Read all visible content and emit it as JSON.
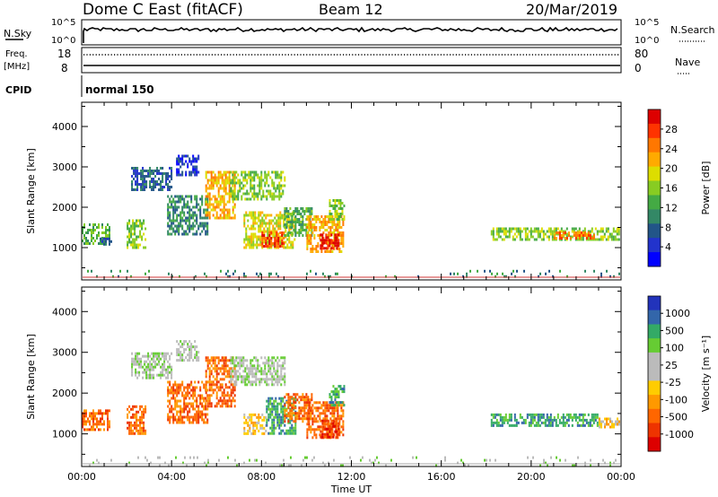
{
  "header": {
    "title": "Dome C East (fitACF)",
    "beam": "Beam 12",
    "date": "20/Mar/2019"
  },
  "summary": {
    "nsky_label": "N.Sky",
    "nsearch_label": "N.Search",
    "nsky_ticks": [
      "10^5",
      "10^0"
    ],
    "nsearch_ticks": [
      "10^5",
      "10^0"
    ],
    "freq_label": "Freq.",
    "freq_unit": "[MHz]",
    "freq_ticks": [
      "18",
      "8"
    ],
    "nave_label": "Nave",
    "nave_ticks": [
      "80",
      "0"
    ],
    "cpid_label": "CPID",
    "cpid_value": "normal 150"
  },
  "chart_data": [
    {
      "type": "heatmap",
      "name": "power",
      "ylabel": "Slant Range [km]",
      "yticks": [
        "4000",
        "3000",
        "2000",
        "1000"
      ],
      "ytick_values": [
        4000,
        3000,
        2000,
        1000
      ],
      "ylim": [
        200,
        4600
      ],
      "xlim": [
        0,
        24
      ],
      "xticks": [
        "00:00",
        "04:00",
        "08:00",
        "12:00",
        "16:00",
        "20:00",
        "00:00"
      ],
      "colorbar": {
        "label": "Power [dB]",
        "ticks": [
          "28",
          "24",
          "20",
          "16",
          "12",
          "8",
          "4"
        ],
        "colors": [
          "#dd0000",
          "#ff3300",
          "#ff7700",
          "#ffaa00",
          "#dddd00",
          "#88cc22",
          "#44aa44",
          "#338866",
          "#225588",
          "#2233cc",
          "#0000ff"
        ]
      },
      "regions": [
        {
          "t0": 0.0,
          "t1": 1.2,
          "r0": 1100,
          "r1": 1600,
          "c": 6
        },
        {
          "t0": 0.8,
          "t1": 1.3,
          "r0": 1050,
          "r1": 1250,
          "c": 8
        },
        {
          "t0": 2.0,
          "t1": 2.8,
          "r0": 1000,
          "r1": 1700,
          "c": 5
        },
        {
          "t0": 2.2,
          "t1": 4.0,
          "r0": 2400,
          "r1": 3000,
          "c": 8
        },
        {
          "t0": 3.8,
          "t1": 5.6,
          "r0": 1300,
          "r1": 2300,
          "c": 7
        },
        {
          "t0": 4.2,
          "t1": 5.2,
          "r0": 2800,
          "r1": 3300,
          "c": 9
        },
        {
          "t0": 5.5,
          "t1": 6.8,
          "r0": 1700,
          "r1": 2900,
          "c": 3
        },
        {
          "t0": 6.6,
          "t1": 9.0,
          "r0": 2200,
          "r1": 2900,
          "c": 5
        },
        {
          "t0": 7.2,
          "t1": 9.5,
          "r0": 1000,
          "r1": 1900,
          "c": 4
        },
        {
          "t0": 8.0,
          "t1": 9.0,
          "r0": 1050,
          "r1": 1400,
          "c": 1
        },
        {
          "t0": 9.0,
          "t1": 10.2,
          "r0": 1300,
          "r1": 2000,
          "c": 6
        },
        {
          "t0": 10.0,
          "t1": 11.6,
          "r0": 900,
          "r1": 1800,
          "c": 3
        },
        {
          "t0": 10.6,
          "t1": 11.4,
          "r0": 950,
          "r1": 1350,
          "c": 0
        },
        {
          "t0": 11.0,
          "t1": 11.7,
          "r0": 1700,
          "r1": 2200,
          "c": 5
        },
        {
          "t0": 18.2,
          "t1": 23.9,
          "r0": 1200,
          "r1": 1500,
          "c": 5
        },
        {
          "t0": 21.0,
          "t1": 22.8,
          "r0": 1250,
          "r1": 1400,
          "c": 2
        },
        {
          "t0": 0.0,
          "t1": 23.9,
          "r0": 250,
          "r1": 450,
          "c": 7
        }
      ]
    },
    {
      "type": "heatmap",
      "name": "velocity",
      "ylabel": "Slant Range [km]",
      "yticks": [
        "4000",
        "3000",
        "2000",
        "1000"
      ],
      "ytick_values": [
        4000,
        3000,
        2000,
        1000
      ],
      "ylim": [
        200,
        4600
      ],
      "xlim": [
        0,
        24
      ],
      "xticks": [
        "00:00",
        "04:00",
        "08:00",
        "12:00",
        "16:00",
        "20:00",
        "00:00"
      ],
      "xlabel": "Time UT",
      "colorbar": {
        "label": "Velocity [m s⁻¹]",
        "ticks": [
          "1000",
          "500",
          "100",
          "25",
          "-25",
          "-100",
          "-500",
          "-1000"
        ],
        "colors": [
          "#2233bb",
          "#3366aa",
          "#33aa66",
          "#66cc33",
          "#bbbbbb",
          "#bbbbbb",
          "#ffcc00",
          "#ff9900",
          "#ff6600",
          "#ee3300",
          "#dd0000"
        ]
      },
      "regions": [
        {
          "t0": 0.0,
          "t1": 1.2,
          "r0": 1100,
          "r1": 1600,
          "c": 8
        },
        {
          "t0": 2.0,
          "t1": 2.8,
          "r0": 1000,
          "r1": 1700,
          "c": 8
        },
        {
          "t0": 2.2,
          "t1": 4.0,
          "r0": 2400,
          "r1": 3000,
          "c": 4
        },
        {
          "t0": 3.8,
          "t1": 5.6,
          "r0": 1300,
          "r1": 2300,
          "c": 8
        },
        {
          "t0": 4.2,
          "t1": 5.2,
          "r0": 2800,
          "r1": 3300,
          "c": 4
        },
        {
          "t0": 5.5,
          "t1": 6.8,
          "r0": 1700,
          "r1": 2900,
          "c": 8
        },
        {
          "t0": 6.6,
          "t1": 9.0,
          "r0": 2200,
          "r1": 2900,
          "c": 4
        },
        {
          "t0": 7.2,
          "t1": 8.2,
          "r0": 1000,
          "r1": 1500,
          "c": 6
        },
        {
          "t0": 8.2,
          "t1": 9.5,
          "r0": 1000,
          "r1": 1900,
          "c": 2
        },
        {
          "t0": 9.0,
          "t1": 10.2,
          "r0": 1300,
          "r1": 2000,
          "c": 8
        },
        {
          "t0": 10.0,
          "t1": 11.6,
          "r0": 900,
          "r1": 1800,
          "c": 8
        },
        {
          "t0": 10.6,
          "t1": 11.4,
          "r0": 950,
          "r1": 1350,
          "c": 9
        },
        {
          "t0": 11.0,
          "t1": 11.7,
          "r0": 1700,
          "r1": 2200,
          "c": 2
        },
        {
          "t0": 18.2,
          "t1": 23.0,
          "r0": 1200,
          "r1": 1500,
          "c": 2
        },
        {
          "t0": 23.0,
          "t1": 23.9,
          "r0": 1200,
          "r1": 1400,
          "c": 6
        },
        {
          "t0": 0.0,
          "t1": 23.9,
          "r0": 250,
          "r1": 450,
          "c": 4
        }
      ]
    }
  ]
}
